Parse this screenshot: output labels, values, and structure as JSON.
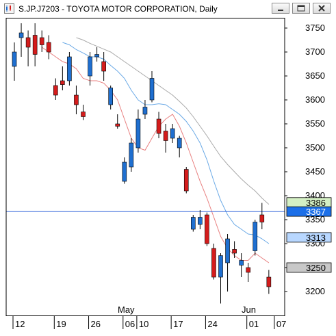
{
  "window": {
    "title": "S.JP.J7203 - TOYOTA MOTOR CORPORATION, Daily",
    "buttons": [
      "minimize",
      "restore",
      "close"
    ]
  },
  "colors": {
    "up_candle": "#1f6fd0",
    "down_candle": "#d41c1c",
    "wick": "#000000",
    "ma_fast": "#e87f7f",
    "ma_mid": "#6aa9e6",
    "ma_slow": "#a9a9a9",
    "crosshair": "#2b5fd9",
    "crosshair_label": "#1c6fe8",
    "label_blue": "#b8d7ff",
    "label_gray": "#c8c8c8",
    "label_green": "#d4f0c4"
  },
  "chart_data": {
    "type": "candlestick",
    "symbol": "S.JP.J7203",
    "title": "TOYOTA MOTOR CORPORATION",
    "period": "Daily",
    "ylim": [
      3180,
      3760
    ],
    "y_ticks": [
      3750,
      3700,
      3650,
      3600,
      3550,
      3500,
      3450,
      3400,
      3350,
      3300,
      3250,
      3200
    ],
    "x_tick_labels": [
      "12",
      "19",
      "26",
      "06",
      "10",
      "17",
      "24",
      "01",
      "07"
    ],
    "month_labels": [
      "May",
      "Jun"
    ],
    "candles": [
      {
        "o": 3670,
        "h": 3720,
        "l": 3640,
        "c": 3700
      },
      {
        "o": 3730,
        "h": 3760,
        "l": 3690,
        "c": 3740
      },
      {
        "o": 3730,
        "h": 3745,
        "l": 3670,
        "c": 3710
      },
      {
        "o": 3735,
        "h": 3760,
        "l": 3670,
        "c": 3695
      },
      {
        "o": 3730,
        "h": 3745,
        "l": 3700,
        "c": 3715
      },
      {
        "o": 3720,
        "h": 3735,
        "l": 3685,
        "c": 3700
      },
      {
        "o": 3630,
        "h": 3645,
        "l": 3600,
        "c": 3610
      },
      {
        "o": 3640,
        "h": 3670,
        "l": 3620,
        "c": 3632
      },
      {
        "o": 3640,
        "h": 3700,
        "l": 3630,
        "c": 3690
      },
      {
        "o": 3610,
        "h": 3630,
        "l": 3570,
        "c": 3590
      },
      {
        "o": 3575,
        "h": 3590,
        "l": 3558,
        "c": 3565
      },
      {
        "o": 3650,
        "h": 3700,
        "l": 3630,
        "c": 3690
      },
      {
        "o": 3690,
        "h": 3710,
        "l": 3680,
        "c": 3695
      },
      {
        "o": 3680,
        "h": 3700,
        "l": 3640,
        "c": 3660
      },
      {
        "o": 3590,
        "h": 3630,
        "l": 3580,
        "c": 3625
      },
      {
        "o": 3550,
        "h": 3570,
        "l": 3540,
        "c": 3545
      },
      {
        "o": 3430,
        "h": 3480,
        "l": 3425,
        "c": 3470
      },
      {
        "o": 3460,
        "h": 3520,
        "l": 3450,
        "c": 3510
      },
      {
        "o": 3500,
        "h": 3580,
        "l": 3490,
        "c": 3560
      },
      {
        "o": 3570,
        "h": 3600,
        "l": 3560,
        "c": 3585
      },
      {
        "o": 3600,
        "h": 3660,
        "l": 3595,
        "c": 3645
      },
      {
        "o": 3560,
        "h": 3575,
        "l": 3520,
        "c": 3530
      },
      {
        "o": 3535,
        "h": 3550,
        "l": 3490,
        "c": 3515
      },
      {
        "o": 3520,
        "h": 3550,
        "l": 3510,
        "c": 3540
      },
      {
        "o": 3500,
        "h": 3525,
        "l": 3480,
        "c": 3520
      },
      {
        "o": 3455,
        "h": 3460,
        "l": 3405,
        "c": 3410
      },
      {
        "o": 3330,
        "h": 3360,
        "l": 3325,
        "c": 3355
      },
      {
        "o": 3340,
        "h": 3370,
        "l": 3330,
        "c": 3355
      },
      {
        "o": 3360,
        "h": 3365,
        "l": 3295,
        "c": 3300
      },
      {
        "o": 3290,
        "h": 3300,
        "l": 3225,
        "c": 3230
      },
      {
        "o": 3230,
        "h": 3280,
        "l": 3175,
        "c": 3275
      },
      {
        "o": 3260,
        "h": 3320,
        "l": 3200,
        "c": 3310
      },
      {
        "o": 3288,
        "h": 3305,
        "l": 3270,
        "c": 3280
      },
      {
        "o": 3255,
        "h": 3280,
        "l": 3230,
        "c": 3265
      },
      {
        "o": 3250,
        "h": 3260,
        "l": 3220,
        "c": 3240
      },
      {
        "o": 3285,
        "h": 3350,
        "l": 3275,
        "c": 3345
      },
      {
        "o": 3360,
        "h": 3385,
        "l": 3330,
        "c": 3345
      },
      {
        "o": 3230,
        "h": 3245,
        "l": 3195,
        "c": 3210
      }
    ],
    "moving_averages": [
      {
        "name": "fast",
        "values": [
          null,
          null,
          null,
          null,
          3710,
          3700,
          3690,
          3680,
          3675,
          3665,
          3645,
          3640,
          3640,
          3635,
          3620,
          3600,
          3560,
          3520,
          3500,
          3495,
          3520,
          3545,
          3560,
          3570,
          3545,
          3510,
          3470,
          3430,
          3395,
          3355,
          3315,
          3290,
          3275,
          3265,
          3265,
          3280,
          3270,
          3260
        ]
      },
      {
        "name": "mid",
        "values": [
          null,
          null,
          null,
          null,
          null,
          null,
          null,
          3720,
          3715,
          3705,
          3698,
          3690,
          3690,
          3685,
          3672,
          3660,
          3645,
          3620,
          3600,
          3590,
          3590,
          3592,
          3590,
          3580,
          3570,
          3555,
          3535,
          3510,
          3475,
          3430,
          3390,
          3360,
          3340,
          3330,
          3320,
          3318,
          3310,
          3300
        ]
      },
      {
        "name": "slow",
        "values": [
          null,
          null,
          null,
          null,
          null,
          null,
          null,
          null,
          null,
          3730,
          3725,
          3718,
          3712,
          3706,
          3700,
          3690,
          3680,
          3670,
          3660,
          3650,
          3640,
          3630,
          3620,
          3610,
          3597,
          3583,
          3565,
          3545,
          3525,
          3503,
          3482,
          3465,
          3450,
          3435,
          3422,
          3410,
          3395,
          3382
        ]
      }
    ],
    "horizontal_line": 3367,
    "price_labels": [
      {
        "text": "3386",
        "value": 3386,
        "style": "green"
      },
      {
        "text": "3367",
        "value": 3367,
        "style": "blue-dark"
      },
      {
        "text": "3313",
        "value": 3313,
        "style": "blue"
      },
      {
        "text": "3250",
        "value": 3250,
        "style": "gray"
      }
    ]
  }
}
